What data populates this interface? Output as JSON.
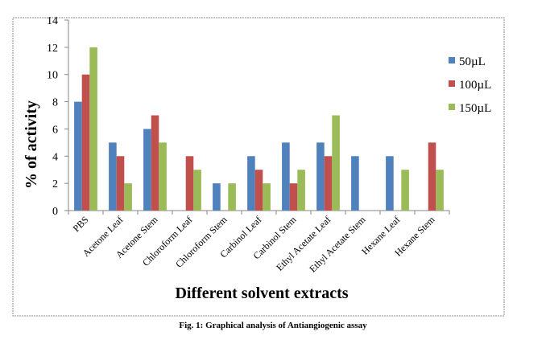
{
  "chart_data": {
    "type": "bar",
    "title": "",
    "xlabel": "Different solvent extracts",
    "ylabel": "% of activity",
    "ylim": [
      0,
      14
    ],
    "yticks": [
      0,
      2,
      4,
      6,
      8,
      10,
      12,
      14
    ],
    "grid": false,
    "legend_position": "right",
    "categories": [
      "PBS",
      "Acetone Leaf",
      "Acetone Stem",
      "Chloroform Leaf",
      "Chloroform Stem",
      "Carbinol Leaf",
      "Carbinol Stem",
      "Ethyl Acetate Leaf",
      "Ethyl Acetate Stem",
      "Hexane Leaf",
      "Hexane Stem"
    ],
    "series": [
      {
        "name": "50µL",
        "color": "#4F81BD",
        "values": [
          8,
          5,
          6,
          0,
          2,
          4,
          5,
          5,
          4,
          4,
          0
        ]
      },
      {
        "name": "100µL",
        "color": "#C0504D",
        "values": [
          10,
          4,
          7,
          4,
          0,
          3,
          2,
          4,
          0,
          0,
          5
        ]
      },
      {
        "name": "150µL",
        "color": "#9BBB59",
        "values": [
          12,
          2,
          5,
          3,
          2,
          2,
          3,
          7,
          0,
          3,
          3
        ]
      }
    ]
  },
  "caption": "Fig. 1: Graphical analysis of Antiangiogenic assay"
}
